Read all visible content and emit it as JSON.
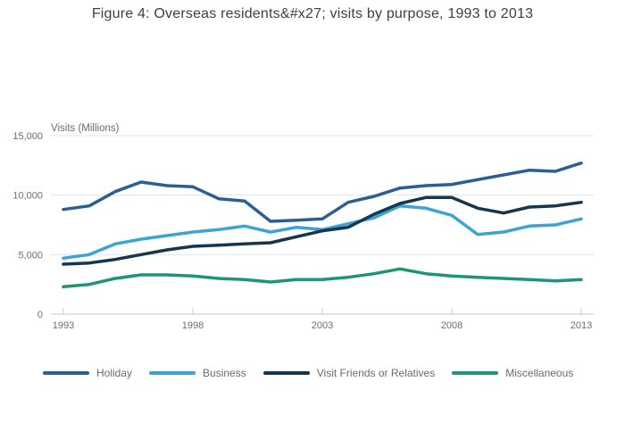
{
  "title": "Figure 4: Overseas residents&#x27; visits by purpose, 1993 to 2013",
  "chart_data": {
    "type": "line",
    "title": "Figure 4: Overseas residents&#x27; visits by purpose, 1993 to 2013",
    "ylabel": "Visits (Millions)",
    "xlabel": "",
    "x": [
      1993,
      1994,
      1995,
      1996,
      1997,
      1998,
      1999,
      2000,
      2001,
      2002,
      2003,
      2004,
      2005,
      2006,
      2007,
      2008,
      2009,
      2010,
      2011,
      2012,
      2013
    ],
    "x_tick_labels": [
      "1993",
      "1998",
      "2003",
      "2008",
      "2013"
    ],
    "y_ticks": [
      0,
      5000,
      10000,
      15000
    ],
    "y_tick_labels": [
      "0",
      "5,000",
      "10,000",
      "15,000"
    ],
    "ylim": [
      0,
      15000
    ],
    "grid": true,
    "legend_position": "bottom",
    "axis_color": "#bfcfda",
    "grid_color": "#e3e3e3",
    "tick_label_color": "#6e6e6e",
    "series": [
      {
        "name": "Holiday",
        "color": "#2b5e94",
        "values": [
          8800,
          9100,
          10300,
          11100,
          10800,
          10700,
          9700,
          9500,
          7800,
          7900,
          8000,
          9400,
          9900,
          10600,
          10800,
          10900,
          11300,
          11700,
          12100,
          12000,
          12700
        ]
      },
      {
        "name": "Business",
        "color": "#3aa5d3",
        "values": [
          4700,
          5000,
          5900,
          6300,
          6600,
          6900,
          7100,
          7400,
          6900,
          7300,
          7100,
          7600,
          8100,
          9100,
          8900,
          8300,
          6700,
          6900,
          7400,
          7500,
          8000
        ]
      },
      {
        "name": "Visit Friends or Relatives",
        "color": "#16364d",
        "values": [
          4200,
          4300,
          4600,
          5000,
          5400,
          5700,
          5800,
          5900,
          6000,
          6500,
          7000,
          7300,
          8400,
          9300,
          9800,
          9800,
          8900,
          8500,
          9000,
          9100,
          9400
        ]
      },
      {
        "name": "Miscellaneous",
        "color": "#1e9478",
        "values": [
          2300,
          2500,
          3000,
          3300,
          3300,
          3200,
          3000,
          2900,
          2700,
          2900,
          2900,
          3100,
          3400,
          3800,
          3400,
          3200,
          3100,
          3000,
          2900,
          2800,
          2900
        ]
      }
    ]
  }
}
